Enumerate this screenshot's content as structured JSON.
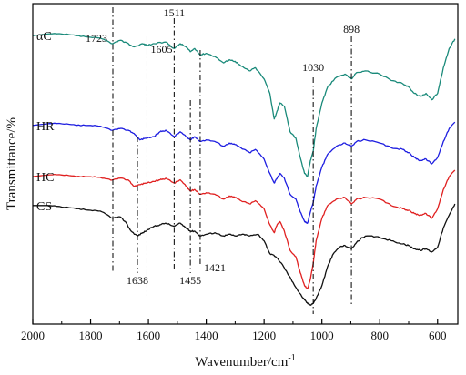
{
  "chart_data": {
    "type": "line",
    "xlabel": "Wavenumber/cm",
    "xlabel_sup": "-1",
    "ylabel": "Transmittance/%",
    "xlim": [
      2000,
      530
    ],
    "x_reversed": true,
    "xticks": [
      2000,
      1800,
      1600,
      1400,
      1200,
      1000,
      800,
      600
    ],
    "grid": false,
    "colors": {
      "αC": "#1a8a7a",
      "HR": "#1e1ee0",
      "HC": "#e02020",
      "CS": "#111111"
    },
    "series": [
      {
        "name": "αC",
        "color": "#1a8a7a",
        "points": [
          [
            2000,
            0.9
          ],
          [
            1950,
            0.905
          ],
          [
            1900,
            0.905
          ],
          [
            1850,
            0.9
          ],
          [
            1800,
            0.895
          ],
          [
            1760,
            0.89
          ],
          [
            1723,
            0.875
          ],
          [
            1700,
            0.885
          ],
          [
            1680,
            0.88
          ],
          [
            1650,
            0.865
          ],
          [
            1620,
            0.875
          ],
          [
            1605,
            0.87
          ],
          [
            1580,
            0.875
          ],
          [
            1540,
            0.88
          ],
          [
            1511,
            0.86
          ],
          [
            1490,
            0.875
          ],
          [
            1470,
            0.865
          ],
          [
            1455,
            0.85
          ],
          [
            1440,
            0.86
          ],
          [
            1421,
            0.84
          ],
          [
            1400,
            0.845
          ],
          [
            1370,
            0.835
          ],
          [
            1340,
            0.815
          ],
          [
            1320,
            0.825
          ],
          [
            1300,
            0.82
          ],
          [
            1280,
            0.805
          ],
          [
            1250,
            0.79
          ],
          [
            1230,
            0.8
          ],
          [
            1200,
            0.765
          ],
          [
            1180,
            0.72
          ],
          [
            1165,
            0.64
          ],
          [
            1155,
            0.665
          ],
          [
            1145,
            0.69
          ],
          [
            1130,
            0.68
          ],
          [
            1110,
            0.6
          ],
          [
            1090,
            0.58
          ],
          [
            1075,
            0.52
          ],
          [
            1060,
            0.47
          ],
          [
            1050,
            0.46
          ],
          [
            1040,
            0.51
          ],
          [
            1030,
            0.54
          ],
          [
            1020,
            0.61
          ],
          [
            1000,
            0.69
          ],
          [
            980,
            0.74
          ],
          [
            950,
            0.77
          ],
          [
            920,
            0.78
          ],
          [
            898,
            0.765
          ],
          [
            880,
            0.785
          ],
          [
            850,
            0.79
          ],
          [
            800,
            0.78
          ],
          [
            760,
            0.76
          ],
          [
            720,
            0.75
          ],
          [
            700,
            0.74
          ],
          [
            680,
            0.72
          ],
          [
            660,
            0.71
          ],
          [
            640,
            0.72
          ],
          [
            620,
            0.7
          ],
          [
            600,
            0.72
          ],
          [
            580,
            0.8
          ],
          [
            560,
            0.86
          ],
          [
            540,
            0.89
          ]
        ]
      },
      {
        "name": "HR",
        "color": "#1e1ee0",
        "points": [
          [
            2000,
            0.62
          ],
          [
            1950,
            0.625
          ],
          [
            1900,
            0.625
          ],
          [
            1850,
            0.62
          ],
          [
            1800,
            0.62
          ],
          [
            1760,
            0.615
          ],
          [
            1723,
            0.605
          ],
          [
            1700,
            0.61
          ],
          [
            1670,
            0.605
          ],
          [
            1650,
            0.595
          ],
          [
            1630,
            0.575
          ],
          [
            1610,
            0.58
          ],
          [
            1580,
            0.585
          ],
          [
            1560,
            0.6
          ],
          [
            1540,
            0.605
          ],
          [
            1511,
            0.585
          ],
          [
            1490,
            0.6
          ],
          [
            1470,
            0.585
          ],
          [
            1455,
            0.575
          ],
          [
            1440,
            0.585
          ],
          [
            1421,
            0.57
          ],
          [
            1400,
            0.575
          ],
          [
            1370,
            0.57
          ],
          [
            1340,
            0.555
          ],
          [
            1320,
            0.565
          ],
          [
            1300,
            0.56
          ],
          [
            1280,
            0.55
          ],
          [
            1250,
            0.535
          ],
          [
            1230,
            0.545
          ],
          [
            1200,
            0.515
          ],
          [
            1180,
            0.47
          ],
          [
            1165,
            0.44
          ],
          [
            1155,
            0.455
          ],
          [
            1145,
            0.47
          ],
          [
            1130,
            0.455
          ],
          [
            1110,
            0.405
          ],
          [
            1090,
            0.39
          ],
          [
            1075,
            0.35
          ],
          [
            1060,
            0.32
          ],
          [
            1050,
            0.315
          ],
          [
            1040,
            0.35
          ],
          [
            1030,
            0.38
          ],
          [
            1020,
            0.43
          ],
          [
            1000,
            0.49
          ],
          [
            980,
            0.53
          ],
          [
            950,
            0.555
          ],
          [
            920,
            0.565
          ],
          [
            898,
            0.555
          ],
          [
            880,
            0.57
          ],
          [
            850,
            0.575
          ],
          [
            800,
            0.565
          ],
          [
            760,
            0.55
          ],
          [
            720,
            0.545
          ],
          [
            700,
            0.535
          ],
          [
            680,
            0.52
          ],
          [
            660,
            0.51
          ],
          [
            640,
            0.515
          ],
          [
            620,
            0.5
          ],
          [
            600,
            0.52
          ],
          [
            580,
            0.57
          ],
          [
            560,
            0.61
          ],
          [
            540,
            0.63
          ]
        ]
      },
      {
        "name": "HC",
        "color": "#e02020",
        "points": [
          [
            2000,
            0.46
          ],
          [
            1950,
            0.465
          ],
          [
            1900,
            0.465
          ],
          [
            1850,
            0.46
          ],
          [
            1800,
            0.46
          ],
          [
            1760,
            0.455
          ],
          [
            1723,
            0.45
          ],
          [
            1700,
            0.455
          ],
          [
            1670,
            0.45
          ],
          [
            1650,
            0.43
          ],
          [
            1630,
            0.435
          ],
          [
            1610,
            0.44
          ],
          [
            1580,
            0.445
          ],
          [
            1560,
            0.45
          ],
          [
            1540,
            0.455
          ],
          [
            1511,
            0.44
          ],
          [
            1490,
            0.45
          ],
          [
            1470,
            0.43
          ],
          [
            1455,
            0.415
          ],
          [
            1440,
            0.42
          ],
          [
            1421,
            0.405
          ],
          [
            1400,
            0.41
          ],
          [
            1370,
            0.405
          ],
          [
            1340,
            0.39
          ],
          [
            1320,
            0.4
          ],
          [
            1300,
            0.395
          ],
          [
            1280,
            0.385
          ],
          [
            1250,
            0.375
          ],
          [
            1230,
            0.385
          ],
          [
            1200,
            0.36
          ],
          [
            1180,
            0.31
          ],
          [
            1165,
            0.285
          ],
          [
            1155,
            0.31
          ],
          [
            1145,
            0.32
          ],
          [
            1130,
            0.29
          ],
          [
            1110,
            0.23
          ],
          [
            1090,
            0.21
          ],
          [
            1075,
            0.16
          ],
          [
            1060,
            0.12
          ],
          [
            1050,
            0.11
          ],
          [
            1040,
            0.14
          ],
          [
            1030,
            0.19
          ],
          [
            1020,
            0.26
          ],
          [
            1000,
            0.33
          ],
          [
            980,
            0.37
          ],
          [
            950,
            0.39
          ],
          [
            920,
            0.395
          ],
          [
            898,
            0.375
          ],
          [
            880,
            0.39
          ],
          [
            850,
            0.395
          ],
          [
            800,
            0.39
          ],
          [
            760,
            0.37
          ],
          [
            720,
            0.36
          ],
          [
            700,
            0.355
          ],
          [
            680,
            0.345
          ],
          [
            660,
            0.34
          ],
          [
            640,
            0.345
          ],
          [
            620,
            0.33
          ],
          [
            600,
            0.36
          ],
          [
            580,
            0.42
          ],
          [
            560,
            0.46
          ],
          [
            540,
            0.48
          ]
        ]
      },
      {
        "name": "CS",
        "color": "#111111",
        "points": [
          [
            2000,
            0.37
          ],
          [
            1950,
            0.37
          ],
          [
            1900,
            0.365
          ],
          [
            1850,
            0.36
          ],
          [
            1800,
            0.355
          ],
          [
            1760,
            0.35
          ],
          [
            1723,
            0.33
          ],
          [
            1700,
            0.335
          ],
          [
            1680,
            0.32
          ],
          [
            1660,
            0.29
          ],
          [
            1638,
            0.275
          ],
          [
            1620,
            0.285
          ],
          [
            1600,
            0.295
          ],
          [
            1580,
            0.305
          ],
          [
            1560,
            0.31
          ],
          [
            1540,
            0.315
          ],
          [
            1511,
            0.305
          ],
          [
            1490,
            0.315
          ],
          [
            1470,
            0.3
          ],
          [
            1455,
            0.29
          ],
          [
            1440,
            0.29
          ],
          [
            1421,
            0.275
          ],
          [
            1400,
            0.28
          ],
          [
            1370,
            0.285
          ],
          [
            1340,
            0.275
          ],
          [
            1320,
            0.28
          ],
          [
            1300,
            0.275
          ],
          [
            1270,
            0.28
          ],
          [
            1250,
            0.275
          ],
          [
            1220,
            0.28
          ],
          [
            1200,
            0.26
          ],
          [
            1180,
            0.22
          ],
          [
            1160,
            0.21
          ],
          [
            1140,
            0.19
          ],
          [
            1120,
            0.16
          ],
          [
            1100,
            0.13
          ],
          [
            1080,
            0.1
          ],
          [
            1060,
            0.075
          ],
          [
            1050,
            0.065
          ],
          [
            1040,
            0.06
          ],
          [
            1030,
            0.065
          ],
          [
            1020,
            0.08
          ],
          [
            1000,
            0.12
          ],
          [
            980,
            0.18
          ],
          [
            960,
            0.22
          ],
          [
            940,
            0.24
          ],
          [
            920,
            0.245
          ],
          [
            898,
            0.235
          ],
          [
            880,
            0.255
          ],
          [
            860,
            0.27
          ],
          [
            840,
            0.275
          ],
          [
            800,
            0.27
          ],
          [
            760,
            0.26
          ],
          [
            720,
            0.25
          ],
          [
            700,
            0.245
          ],
          [
            680,
            0.235
          ],
          [
            660,
            0.23
          ],
          [
            640,
            0.235
          ],
          [
            620,
            0.225
          ],
          [
            600,
            0.24
          ],
          [
            580,
            0.3
          ],
          [
            560,
            0.34
          ],
          [
            540,
            0.375
          ]
        ]
      }
    ],
    "annotations": [
      {
        "wavenumber": 1723,
        "label": "1723"
      },
      {
        "wavenumber": 1638,
        "label": "1638"
      },
      {
        "wavenumber": 1605,
        "label": "1605"
      },
      {
        "wavenumber": 1511,
        "label": "1511"
      },
      {
        "wavenumber": 1455,
        "label": "1455"
      },
      {
        "wavenumber": 1421,
        "label": "1421"
      },
      {
        "wavenumber": 1030,
        "label": "1030"
      },
      {
        "wavenumber": 898,
        "label": "898"
      }
    ]
  }
}
